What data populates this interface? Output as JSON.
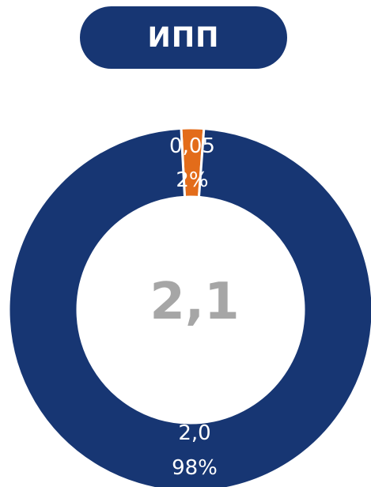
{
  "chart_data": {
    "type": "pie",
    "title": "ИПП",
    "total_label": "2,1",
    "slices": [
      {
        "value_label": "0,05",
        "percent_label": "2%",
        "value": 0.05,
        "percent": 2,
        "color": "#E36C1A"
      },
      {
        "value_label": "2,0",
        "percent_label": "98%",
        "value": 2.0,
        "percent": 98,
        "color": "#173673"
      }
    ]
  }
}
